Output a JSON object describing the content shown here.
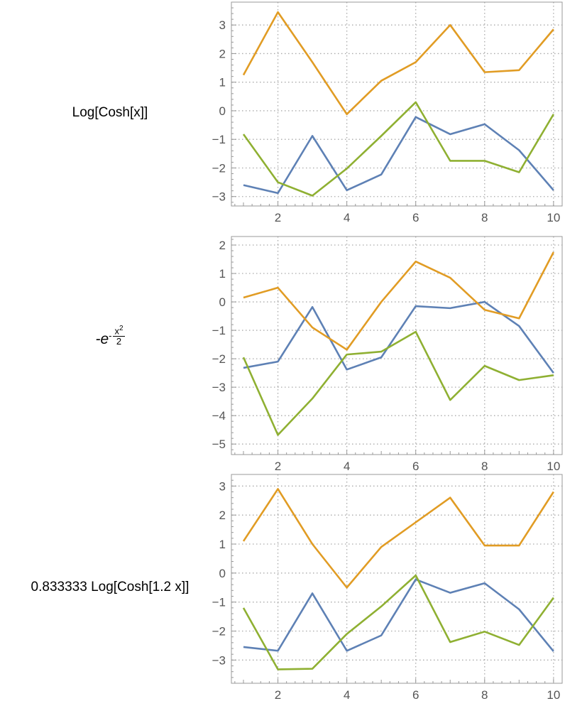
{
  "colors": {
    "series1": "#5E81B5",
    "series2": "#E19C24",
    "series3": "#8FB032",
    "frame": "#999999",
    "grid": "#aaaaaa"
  },
  "rows": [
    {
      "label": "Log[Cosh[x]]"
    },
    {
      "label_formula": {
        "prefix": "-e",
        "exp_sign": "-",
        "numerator": "x",
        "numerator_power": "2",
        "denominator": "2"
      }
    },
    {
      "label": "0.833333 Log[Cosh[1.2 x]]"
    }
  ],
  "chart_data": [
    {
      "type": "line",
      "grid": true,
      "x": [
        1,
        2,
        3,
        4,
        5,
        6,
        7,
        8,
        9,
        10
      ],
      "xlim": [
        0.65,
        10.25
      ],
      "ylim": [
        -3.33,
        3.8
      ],
      "xticks": [
        2,
        4,
        6,
        8,
        10
      ],
      "yticks": [
        -3,
        -2,
        -1,
        0,
        1,
        2,
        3
      ],
      "series": [
        {
          "values": [
            -2.6,
            -2.88,
            -0.88,
            -2.78,
            -2.23,
            -0.22,
            -0.82,
            -0.47,
            -1.38,
            -2.78
          ]
        },
        {
          "values": [
            1.25,
            3.45,
            1.7,
            -0.12,
            1.05,
            1.7,
            3.0,
            1.35,
            1.42,
            2.85
          ]
        },
        {
          "values": [
            -0.82,
            -2.5,
            -2.97,
            -2.02,
            -0.88,
            0.3,
            -1.75,
            -1.75,
            -2.15,
            -0.12
          ]
        }
      ]
    },
    {
      "type": "line",
      "grid": true,
      "x": [
        1,
        2,
        3,
        4,
        5,
        6,
        7,
        8,
        9,
        10
      ],
      "xlim": [
        0.65,
        10.25
      ],
      "ylim": [
        -5.37,
        2.3
      ],
      "xticks": [
        2,
        4,
        6,
        8,
        10
      ],
      "yticks": [
        -5,
        -4,
        -3,
        -2,
        -1,
        0,
        1,
        2
      ],
      "series": [
        {
          "values": [
            -2.32,
            -2.1,
            -0.18,
            -2.38,
            -1.95,
            -0.15,
            -0.22,
            0.0,
            -0.85,
            -2.5
          ]
        },
        {
          "values": [
            0.15,
            0.5,
            -0.9,
            -1.68,
            0.0,
            1.42,
            0.85,
            -0.28,
            -0.58,
            1.75
          ]
        },
        {
          "values": [
            -1.95,
            -4.68,
            -3.4,
            -1.85,
            -1.75,
            -1.05,
            -3.45,
            -2.25,
            -2.75,
            -2.58
          ]
        }
      ]
    },
    {
      "type": "line",
      "grid": true,
      "x": [
        1,
        2,
        3,
        4,
        5,
        6,
        7,
        8,
        9,
        10
      ],
      "xlim": [
        0.65,
        10.25
      ],
      "ylim": [
        -3.8,
        3.4
      ],
      "xticks": [
        2,
        4,
        6,
        8,
        10
      ],
      "yticks": [
        -3,
        -2,
        -1,
        0,
        1,
        2,
        3
      ],
      "series": [
        {
          "values": [
            -2.55,
            -2.68,
            -0.7,
            -2.68,
            -2.15,
            -0.22,
            -0.68,
            -0.35,
            -1.25,
            -2.7
          ]
        },
        {
          "values": [
            1.1,
            2.9,
            1.0,
            -0.5,
            0.9,
            1.75,
            2.6,
            0.95,
            0.95,
            2.8
          ]
        },
        {
          "values": [
            -1.2,
            -3.32,
            -3.3,
            -2.1,
            -1.15,
            -0.08,
            -2.38,
            -2.02,
            -2.48,
            -0.85
          ]
        }
      ]
    }
  ]
}
